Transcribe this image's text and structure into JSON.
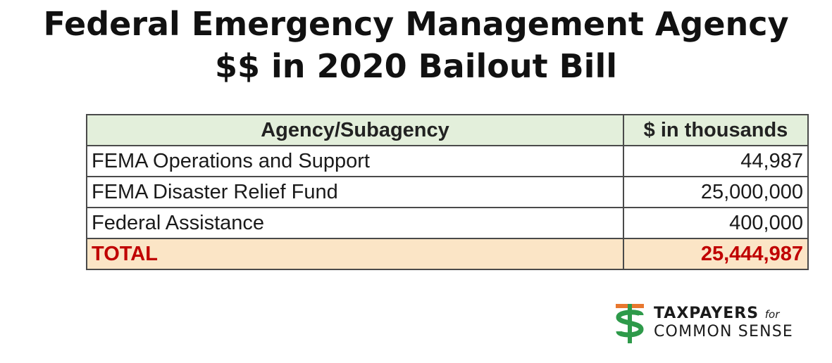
{
  "title": {
    "line1": "Federal Emergency Management Agency",
    "line2": "$$ in 2020 Bailout Bill"
  },
  "table": {
    "headers": {
      "agency": "Agency/Subagency",
      "amount": "$ in thousands"
    },
    "rows": [
      {
        "agency": "FEMA Operations and Support",
        "amount": "44,987"
      },
      {
        "agency": "FEMA Disaster Relief Fund",
        "amount": "25,000,000"
      },
      {
        "agency": "Federal Assistance",
        "amount": "400,000"
      }
    ],
    "total": {
      "label": "TOTAL",
      "amount": "25,444,987"
    }
  },
  "logo": {
    "line1": "TAXPAYERS",
    "line1_small": "for",
    "line2": "COMMON SENSE"
  },
  "colors": {
    "header_bg": "#e3efdb",
    "total_bg": "#fbe5c6",
    "total_text": "#c00000",
    "logo_orange": "#e8772e",
    "logo_green": "#2e9a4a"
  }
}
